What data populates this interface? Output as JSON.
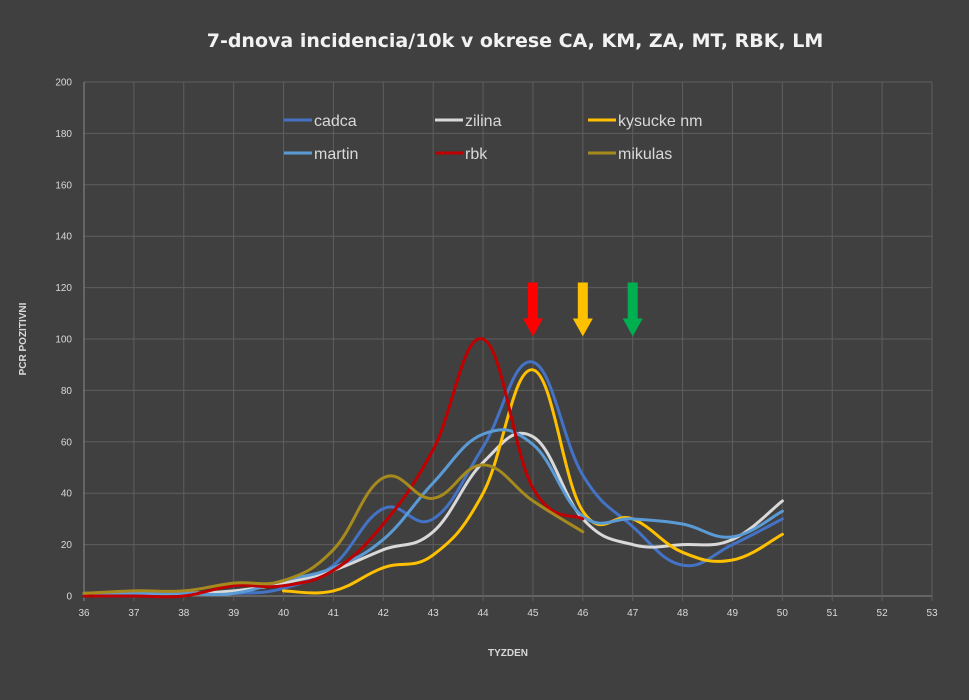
{
  "chart_data": {
    "type": "line",
    "title": "7-dnova incidencia/10k v okrese CA, KM, ZA, MT, RBK, LM",
    "xlabel": "TYZDEN",
    "ylabel": "PCR POZITIVNI",
    "xlim": [
      36,
      53
    ],
    "ylim": [
      0,
      200
    ],
    "x_ticks": [
      36,
      37,
      38,
      39,
      40,
      41,
      42,
      43,
      44,
      45,
      46,
      47,
      48,
      49,
      50,
      51,
      52,
      53
    ],
    "y_ticks": [
      0,
      20,
      40,
      60,
      80,
      100,
      120,
      140,
      160,
      180,
      200
    ],
    "grid": true,
    "legend_position": "top",
    "series": [
      {
        "name": "cadca",
        "color": "#4472c4",
        "x": [
          36,
          37,
          38,
          39,
          40,
          41,
          42,
          43,
          44,
          45,
          46,
          47,
          48,
          49,
          50
        ],
        "y": [
          1,
          1,
          1,
          1,
          3,
          12,
          34,
          30,
          58,
          91,
          47,
          27,
          12,
          20,
          30
        ]
      },
      {
        "name": "zilina",
        "color": "#d9d9d9",
        "x": [
          36,
          37,
          38,
          39,
          40,
          41,
          42,
          43,
          44,
          45,
          46,
          47,
          48,
          49,
          50
        ],
        "y": [
          1,
          1,
          1,
          2,
          5,
          10,
          18,
          25,
          52,
          62,
          30,
          20,
          20,
          22,
          37
        ]
      },
      {
        "name": "kysucke nm",
        "color": "#ffc000",
        "x": [
          40,
          41,
          42,
          43,
          44,
          45,
          46,
          47,
          48,
          49,
          50
        ],
        "y": [
          2,
          2,
          11,
          16,
          40,
          88,
          33,
          30,
          17,
          14,
          24
        ]
      },
      {
        "name": "martin",
        "color": "#5b9bd5",
        "x": [
          36,
          37,
          38,
          39,
          40,
          41,
          42,
          43,
          44,
          45,
          46,
          47,
          48,
          49,
          50
        ],
        "y": [
          1,
          1,
          1,
          1,
          6,
          11,
          22,
          44,
          63,
          59,
          31,
          30,
          28,
          23,
          33
        ]
      },
      {
        "name": "rbk",
        "color": "#c00000",
        "x": [
          36,
          37,
          38,
          39,
          40,
          41,
          42,
          43,
          44,
          45,
          46
        ],
        "y": [
          0,
          0,
          0,
          4,
          4,
          10,
          28,
          57,
          100,
          42,
          30
        ]
      },
      {
        "name": "mikulas",
        "color": "#a68a1d",
        "x": [
          36,
          37,
          38,
          39,
          40,
          41,
          42,
          43,
          44,
          45,
          46
        ],
        "y": [
          1,
          2,
          2,
          5,
          6,
          18,
          46,
          38,
          51,
          37,
          25
        ]
      }
    ],
    "annotations": [
      {
        "type": "arrow",
        "x": 45,
        "color": "#ff0000"
      },
      {
        "type": "arrow",
        "x": 46,
        "color": "#ffc000"
      },
      {
        "type": "arrow",
        "x": 47,
        "color": "#00b050"
      }
    ]
  }
}
